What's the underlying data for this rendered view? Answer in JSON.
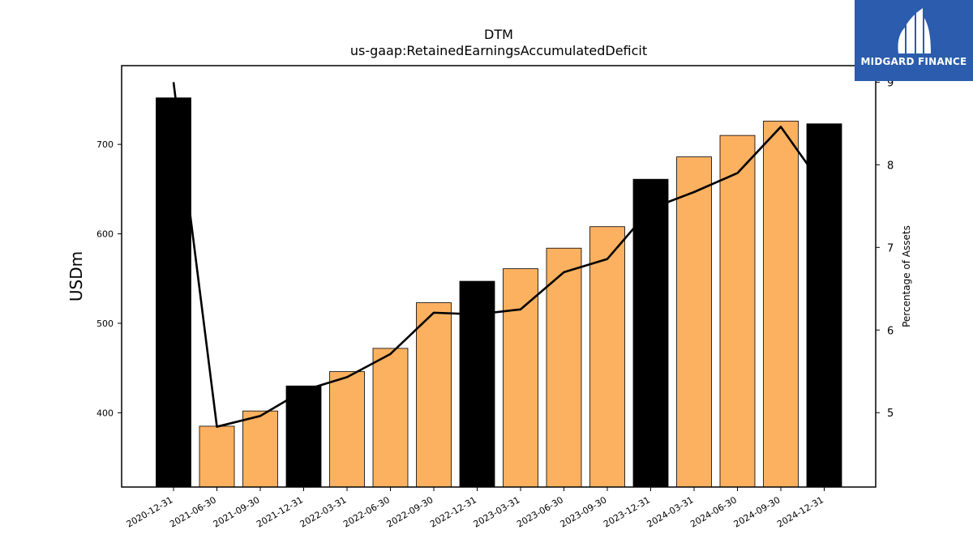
{
  "chart_data": {
    "type": "bar",
    "title": "DTM",
    "subtitle": "us-gaap:RetainedEarningsAccumulatedDeficit",
    "ylabel": "USDm",
    "y2label": "Percentage of Assets",
    "categories": [
      "2020-12-31",
      "2021-06-30",
      "2021-09-30",
      "2021-12-31",
      "2022-03-31",
      "2022-06-30",
      "2022-09-30",
      "2022-12-31",
      "2023-03-31",
      "2023-06-30",
      "2023-09-30",
      "2023-12-31",
      "2024-03-31",
      "2024-06-30",
      "2024-09-30",
      "2024-12-31"
    ],
    "series": [
      {
        "type": "bar",
        "axis": "left",
        "values": [
          752,
          385,
          402,
          430,
          446,
          472,
          523,
          547,
          561,
          584,
          608,
          661,
          686,
          710,
          726,
          723
        ],
        "colors": [
          "#000000",
          "#fbb160",
          "#fbb160",
          "#000000",
          "#fbb160",
          "#fbb160",
          "#fbb160",
          "#000000",
          "#fbb160",
          "#fbb160",
          "#fbb160",
          "#000000",
          "#fbb160",
          "#fbb160",
          "#fbb160",
          "#000000"
        ]
      },
      {
        "type": "line",
        "axis": "right",
        "color": "#000000",
        "values": [
          9.0,
          4.83,
          4.96,
          5.27,
          5.43,
          5.71,
          6.21,
          6.19,
          6.25,
          6.7,
          6.86,
          7.47,
          7.67,
          7.9,
          8.46,
          7.72
        ]
      }
    ],
    "ylim": [
      317,
      788
    ],
    "yticks": [
      400,
      500,
      600,
      700
    ],
    "y2lim": [
      4.1,
      9.2
    ],
    "y2ticks": [
      5,
      6,
      7,
      8,
      9
    ],
    "grid": false
  },
  "logo": {
    "text": "MIDGARD FINANCE"
  }
}
